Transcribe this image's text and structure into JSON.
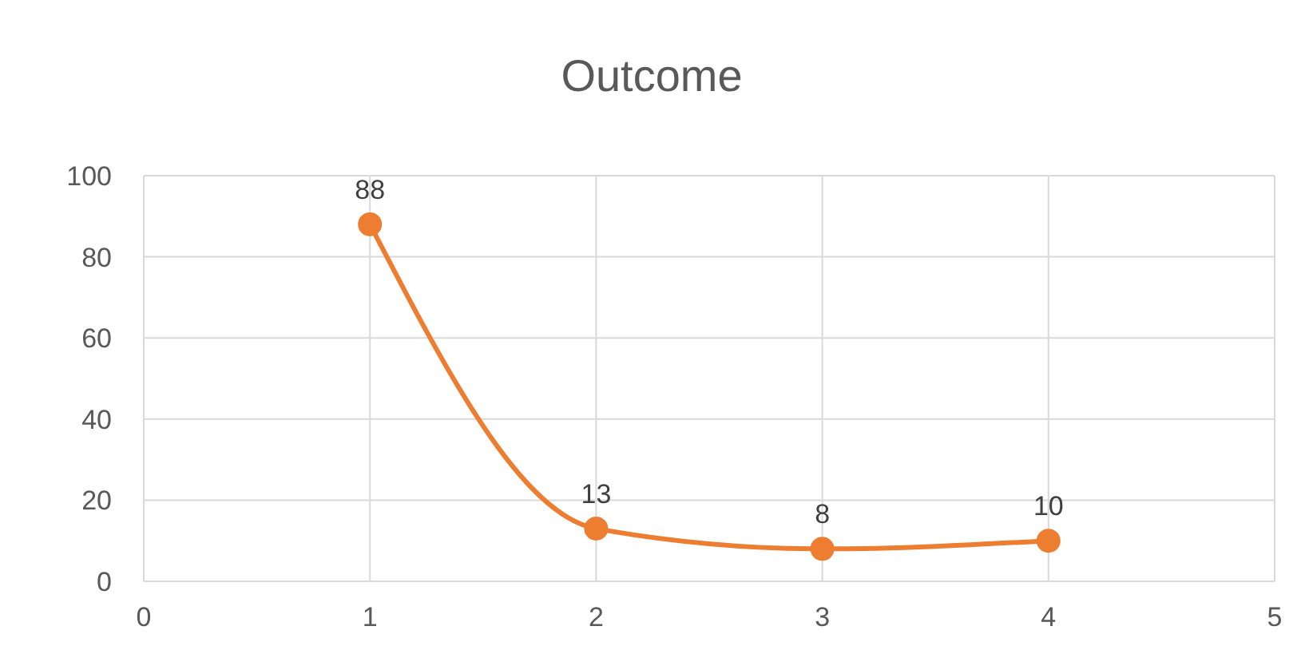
{
  "chart_data": {
    "type": "line",
    "title": "Outcome",
    "x": [
      1,
      2,
      3,
      4
    ],
    "series": [
      {
        "color": "#ed7d31",
        "values": [
          88,
          13,
          8,
          10
        ]
      }
    ],
    "xlim": [
      0,
      5
    ],
    "xticks": [
      0,
      1,
      2,
      3,
      4,
      5
    ],
    "ylim": [
      0,
      100
    ],
    "yticks": [
      0,
      20,
      40,
      60,
      80,
      100
    ],
    "grid": true,
    "marker": "circle",
    "line_style": "solid",
    "data_labels": true,
    "legend": false
  }
}
